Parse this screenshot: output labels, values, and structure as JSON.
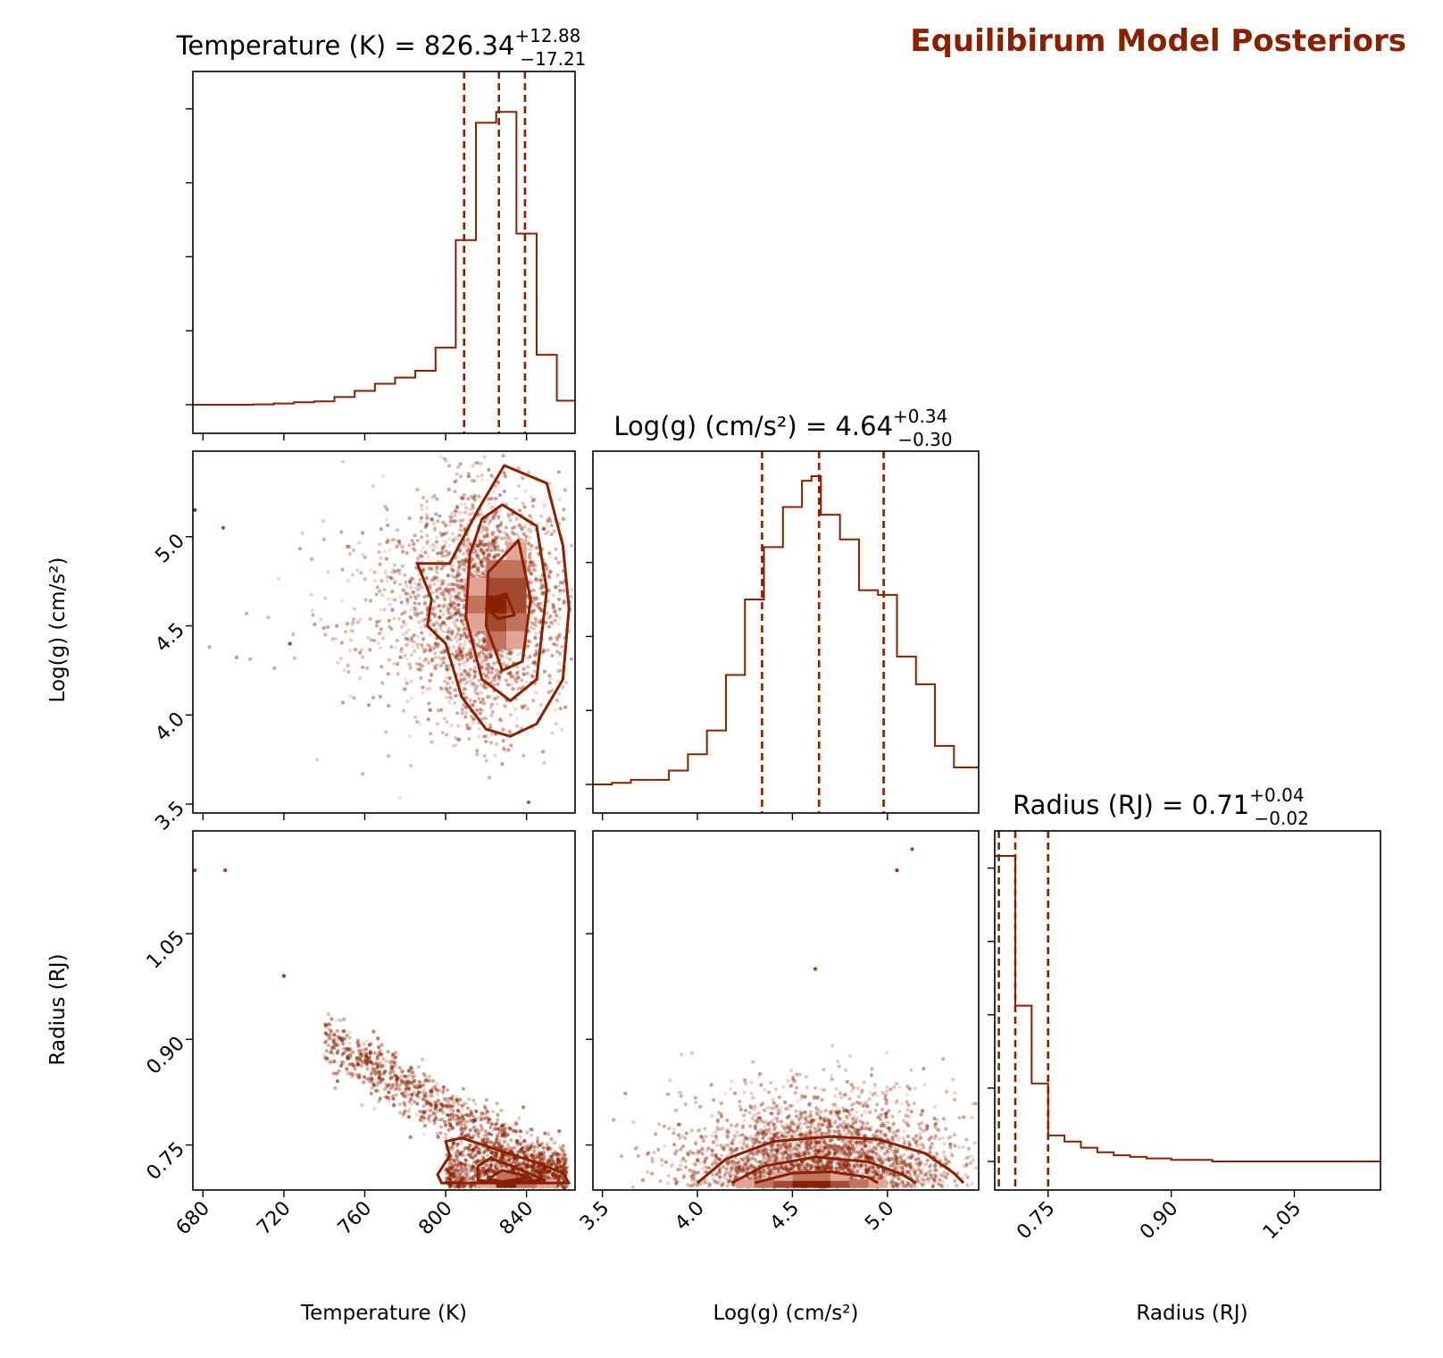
{
  "title": "Equilibirum Model Posteriors",
  "colors": {
    "main": "#8b2000",
    "frame": "#000000",
    "density": [
      "#fdf1ee",
      "#f5d2c8",
      "#e2a494",
      "#c2735e",
      "#a14a30",
      "#8b2000"
    ]
  },
  "chart_data": [
    {
      "type": "histogram",
      "panel": "temperature-marginal",
      "xlabel": "Temperature (K)",
      "xlim": [
        675,
        864
      ],
      "ylim": [
        0,
        1.0
      ],
      "title_base": "Temperature (K) = 826.34",
      "title_sup": "+12.88",
      "title_sub": "−17.21",
      "bin_edges": [
        675,
        685,
        695,
        705,
        715,
        725,
        735,
        745,
        755,
        765,
        775,
        785,
        795,
        805,
        815,
        825,
        835,
        845,
        855,
        864
      ],
      "values": [
        0.0,
        0.0,
        0.0,
        0.001,
        0.004,
        0.008,
        0.011,
        0.025,
        0.045,
        0.068,
        0.088,
        0.11,
        0.185,
        0.534,
        0.915,
        0.95,
        0.555,
        0.162,
        0.013
      ],
      "quantiles": [
        809.13,
        826.34,
        839.22
      ],
      "x_ticks": [
        680,
        720,
        760,
        800,
        840
      ],
      "show_x_ticklabels": false
    },
    {
      "type": "histogram",
      "panel": "logg-marginal",
      "xlabel": "Log(g) (cm/s²)",
      "xlim": [
        3.45,
        5.48
      ],
      "ylim": [
        0,
        1.0
      ],
      "title_base": "Log(g) (cm/s²) = 4.64",
      "title_sup": "+0.34",
      "title_sub": "−0.30",
      "bin_edges": [
        3.45,
        3.55,
        3.65,
        3.75,
        3.85,
        3.95,
        4.05,
        4.15,
        4.25,
        4.35,
        4.45,
        4.55,
        4.6,
        4.65,
        4.75,
        4.85,
        4.95,
        5.05,
        5.15,
        5.25,
        5.35,
        5.48
      ],
      "values": [
        0.0,
        0.005,
        0.015,
        0.015,
        0.045,
        0.098,
        0.175,
        0.355,
        0.6,
        0.77,
        0.9,
        0.985,
        1.0,
        0.875,
        0.795,
        0.63,
        0.615,
        0.415,
        0.325,
        0.125,
        0.055
      ],
      "quantiles": [
        4.34,
        4.64,
        4.98
      ],
      "x_ticks": [
        3.5,
        4.0,
        4.5,
        5.0
      ],
      "show_x_ticklabels": false
    },
    {
      "type": "histogram",
      "panel": "radius-marginal",
      "xlabel": "Radius (RJ)",
      "xlim": [
        0.685,
        1.155
      ],
      "ylim": [
        0,
        1.0
      ],
      "title_base": "Radius (RJ) = 0.71",
      "title_sup": "+0.04",
      "title_sub": "−0.02",
      "bin_edges": [
        0.685,
        0.71,
        0.73,
        0.75,
        0.77,
        0.79,
        0.81,
        0.83,
        0.85,
        0.87,
        0.9,
        0.95,
        1.0,
        1.155
      ],
      "values": [
        1.0,
        0.51,
        0.255,
        0.085,
        0.065,
        0.045,
        0.03,
        0.02,
        0.015,
        0.01,
        0.005,
        0.0,
        0.0
      ],
      "quantiles": [
        0.69,
        0.71,
        0.75
      ],
      "x_ticks": [
        0.75,
        0.9,
        1.05
      ],
      "x_ticklabels": [
        "0.75",
        "0.90",
        "1.05"
      ],
      "show_x_ticklabels": true
    },
    {
      "type": "scatter-density",
      "panel": "temperature-vs-logg",
      "xlim": [
        675,
        864
      ],
      "ylim": [
        3.45,
        5.48
      ],
      "ylabel": "Log(g) (cm/s²)",
      "y_ticks": [
        3.5,
        4.0,
        4.5,
        5.0
      ],
      "y_ticklabels": [
        "3.5",
        "4.0",
        "4.5",
        "5.0"
      ],
      "x_ticks": [
        680,
        720,
        760,
        800,
        840
      ],
      "show_x_ticklabels": false,
      "cloud": {
        "center": [
          826,
          4.62
        ],
        "spread": [
          17,
          0.32
        ],
        "tail": {
          "toward": [
            700,
            4.62
          ],
          "spread": [
            0.35
          ]
        }
      },
      "outliers": [
        [
          690,
          5.05
        ],
        [
          723,
          4.4
        ],
        [
          676,
          5.15
        ],
        [
          841,
          3.51
        ]
      ],
      "contours": [
        {
          "level": 1,
          "points": [
            [
              829,
              5.4
            ],
            [
              850,
              5.3
            ],
            [
              858,
              4.95
            ],
            [
              861,
              4.6
            ],
            [
              858,
              4.2
            ],
            [
              845,
              3.95
            ],
            [
              832,
              3.88
            ],
            [
              820,
              3.92
            ],
            [
              808,
              4.1
            ],
            [
              800,
              4.4
            ],
            [
              791,
              4.5
            ],
            [
              793,
              4.65
            ],
            [
              786,
              4.85
            ],
            [
              802,
              4.85
            ],
            [
              816,
              5.15
            ]
          ]
        },
        {
          "level": 2,
          "points": [
            [
              828,
              5.18
            ],
            [
              845,
              5.06
            ],
            [
              850,
              4.7
            ],
            [
              845,
              4.2
            ],
            [
              832,
              4.08
            ],
            [
              818,
              4.2
            ],
            [
              810,
              4.55
            ],
            [
              812,
              4.9
            ],
            [
              818,
              5.1
            ]
          ]
        },
        {
          "level": 3,
          "points": [
            [
              836,
              4.98
            ],
            [
              842,
              4.65
            ],
            [
              838,
              4.3
            ],
            [
              828,
              4.25
            ],
            [
              820,
              4.5
            ],
            [
              821,
              4.8
            ]
          ]
        },
        {
          "level": 4,
          "points": [
            [
              830,
              4.68
            ],
            [
              834,
              4.56
            ],
            [
              826,
              4.54
            ],
            [
              820,
              4.6
            ],
            [
              824,
              4.66
            ]
          ]
        }
      ],
      "grid_cells": [
        {
          "x": 825,
          "y": 4.62,
          "level": 5
        },
        {
          "x": 835,
          "y": 4.62,
          "level": 4
        },
        {
          "x": 825,
          "y": 4.72,
          "level": 4
        },
        {
          "x": 835,
          "y": 4.72,
          "level": 4
        },
        {
          "x": 835,
          "y": 4.82,
          "level": 3
        },
        {
          "x": 825,
          "y": 4.52,
          "level": 4
        },
        {
          "x": 835,
          "y": 4.52,
          "level": 3
        },
        {
          "x": 815,
          "y": 4.62,
          "level": 3
        },
        {
          "x": 815,
          "y": 4.72,
          "level": 2
        },
        {
          "x": 825,
          "y": 4.82,
          "level": 3
        },
        {
          "x": 815,
          "y": 4.52,
          "level": 2
        },
        {
          "x": 825,
          "y": 4.42,
          "level": 3
        },
        {
          "x": 835,
          "y": 4.42,
          "level": 2
        },
        {
          "x": 835,
          "y": 4.92,
          "level": 2
        }
      ]
    },
    {
      "type": "scatter-density",
      "panel": "temperature-vs-radius",
      "xlim": [
        675,
        864
      ],
      "ylim": [
        0.686,
        1.196
      ],
      "ylabel": "Radius (RJ)",
      "xlabel": "Temperature (K)",
      "y_ticks": [
        0.75,
        0.9,
        1.05
      ],
      "y_ticklabels": [
        "0.75",
        "0.90",
        "1.05"
      ],
      "x_ticks": [
        680,
        720,
        760,
        800,
        840
      ],
      "x_ticklabels": [
        "680",
        "720",
        "760",
        "800",
        "840"
      ],
      "show_x_ticklabels": true,
      "outliers": [
        [
          691,
          1.14
        ],
        [
          676,
          1.14
        ],
        [
          720,
          0.99
        ]
      ],
      "contours": [
        {
          "level": 1,
          "points": [
            [
              808,
              0.76
            ],
            [
              829,
              0.74
            ],
            [
              845,
              0.725
            ],
            [
              858,
              0.71
            ],
            [
              861,
              0.696
            ],
            [
              798,
              0.696
            ],
            [
              796,
              0.708
            ],
            [
              802,
              0.735
            ],
            [
              800,
              0.755
            ]
          ]
        },
        {
          "level": 2,
          "points": [
            [
              822,
              0.731
            ],
            [
              833,
              0.72
            ],
            [
              849,
              0.7
            ],
            [
              825,
              0.697
            ],
            [
              816,
              0.7
            ],
            [
              816,
              0.72
            ]
          ]
        },
        {
          "level": 3,
          "points": [
            [
              828,
              0.714
            ],
            [
              842,
              0.704
            ],
            [
              828,
              0.698
            ],
            [
              821,
              0.702
            ]
          ]
        }
      ],
      "grid_cells": [
        {
          "x": 830,
          "y": 0.695,
          "level": 5
        },
        {
          "x": 840,
          "y": 0.695,
          "level": 3
        },
        {
          "x": 820,
          "y": 0.695,
          "level": 2
        },
        {
          "x": 830,
          "y": 0.705,
          "level": 3
        },
        {
          "x": 850,
          "y": 0.695,
          "level": 2
        }
      ]
    },
    {
      "type": "scatter-density",
      "panel": "logg-vs-radius",
      "xlim": [
        3.45,
        5.48
      ],
      "ylim": [
        0.686,
        1.196
      ],
      "xlabel": "Log(g) (cm/s²)",
      "x_ticks": [
        3.5,
        4.0,
        4.5,
        5.0
      ],
      "x_ticklabels": [
        "3.5",
        "4.0",
        "4.5",
        "5.0"
      ],
      "show_x_ticklabels": true,
      "outliers": [
        [
          5.05,
          1.14
        ],
        [
          4.62,
          1.0
        ],
        [
          5.13,
          1.17
        ]
      ],
      "contours": [
        {
          "level": 1,
          "points": [
            [
              4.0,
              0.696
            ],
            [
              4.15,
              0.73
            ],
            [
              4.4,
              0.755
            ],
            [
              4.7,
              0.762
            ],
            [
              4.95,
              0.758
            ],
            [
              5.2,
              0.738
            ],
            [
              5.35,
              0.71
            ],
            [
              5.4,
              0.696
            ]
          ]
        },
        {
          "level": 2,
          "points": [
            [
              4.18,
              0.696
            ],
            [
              4.35,
              0.72
            ],
            [
              4.62,
              0.733
            ],
            [
              4.9,
              0.726
            ],
            [
              5.08,
              0.708
            ],
            [
              5.15,
              0.696
            ]
          ]
        },
        {
          "level": 3,
          "points": [
            [
              4.3,
              0.696
            ],
            [
              4.5,
              0.71
            ],
            [
              4.7,
              0.712
            ],
            [
              4.9,
              0.704
            ],
            [
              4.95,
              0.696
            ]
          ]
        }
      ],
      "grid_cells": [
        {
          "x": 4.55,
          "y": 0.695,
          "level": 5
        },
        {
          "x": 4.65,
          "y": 0.695,
          "level": 5
        },
        {
          "x": 4.45,
          "y": 0.695,
          "level": 4
        },
        {
          "x": 4.75,
          "y": 0.695,
          "level": 4
        },
        {
          "x": 4.35,
          "y": 0.695,
          "level": 3
        },
        {
          "x": 4.85,
          "y": 0.695,
          "level": 3
        },
        {
          "x": 4.25,
          "y": 0.695,
          "level": 2
        },
        {
          "x": 4.95,
          "y": 0.695,
          "level": 2
        },
        {
          "x": 4.55,
          "y": 0.705,
          "level": 3
        },
        {
          "x": 4.65,
          "y": 0.705,
          "level": 3
        },
        {
          "x": 4.45,
          "y": 0.705,
          "level": 2
        },
        {
          "x": 4.75,
          "y": 0.705,
          "level": 2
        }
      ]
    }
  ]
}
